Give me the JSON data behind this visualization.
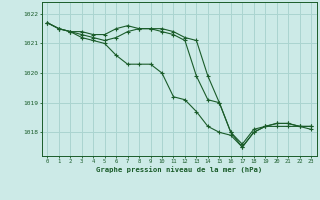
{
  "title": "Graphe pression niveau de la mer (hPa)",
  "bg_color": "#cceae7",
  "grid_color": "#aad4d0",
  "line_color": "#1a5c2a",
  "x_ticks": [
    0,
    1,
    2,
    3,
    4,
    5,
    6,
    7,
    8,
    9,
    10,
    11,
    12,
    13,
    14,
    15,
    16,
    17,
    18,
    19,
    20,
    21,
    22,
    23
  ],
  "y_ticks": [
    1018,
    1019,
    1020,
    1021,
    1022
  ],
  "ylim": [
    1017.2,
    1022.4
  ],
  "xlim": [
    -0.5,
    23.5
  ],
  "series": [
    [
      1021.7,
      1021.5,
      1021.4,
      1021.4,
      1021.3,
      1021.3,
      1021.5,
      1021.6,
      1021.5,
      1021.5,
      1021.5,
      1021.4,
      1021.2,
      1021.1,
      1019.9,
      1019.0,
      1018.0,
      1017.6,
      1018.1,
      1018.2,
      1018.3,
      1018.3,
      1018.2,
      1018.2
    ],
    [
      1021.7,
      1021.5,
      1021.4,
      1021.3,
      1021.2,
      1021.1,
      1021.2,
      1021.4,
      1021.5,
      1021.5,
      1021.4,
      1021.3,
      1021.1,
      1019.9,
      1019.1,
      1019.0,
      1018.0,
      1017.5,
      1018.0,
      1018.2,
      1018.3,
      1018.3,
      1018.2,
      1018.2
    ],
    [
      1021.7,
      1021.5,
      1021.4,
      1021.2,
      1021.1,
      1021.0,
      1020.6,
      1020.3,
      1020.3,
      1020.3,
      1020.0,
      1019.2,
      1019.1,
      1018.7,
      1018.2,
      1018.0,
      1017.9,
      1017.5,
      1018.0,
      1018.2,
      1018.2,
      1018.2,
      1018.2,
      1018.1
    ]
  ]
}
